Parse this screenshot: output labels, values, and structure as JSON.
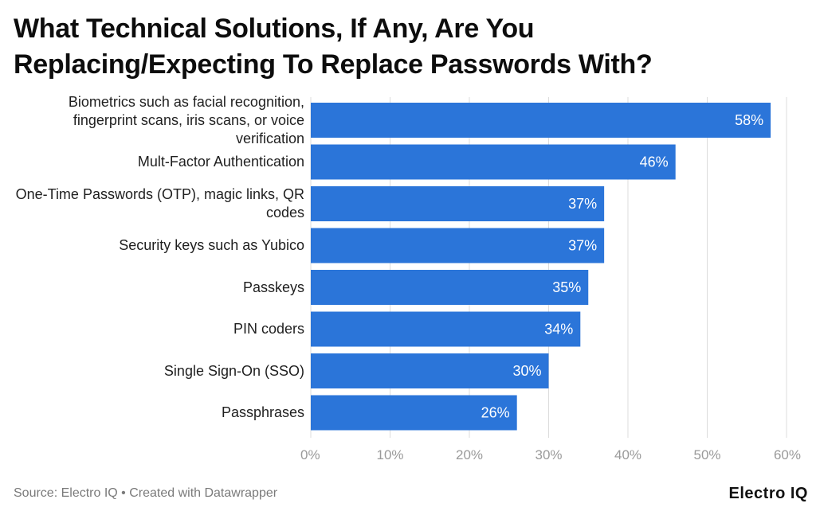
{
  "header": {
    "title": "What Technical Solutions, If Any, Are You Replacing/Expecting To Replace Passwords With?"
  },
  "footer": {
    "source": "Source: Electro IQ • Created with Datawrapper",
    "brand": "Electro IQ"
  },
  "colors": {
    "bar": "#2b75d9",
    "grid": "#dcdcdc",
    "tick": "#9a9a9a",
    "value_label": "#ffffff"
  },
  "chart_data": {
    "type": "bar",
    "orientation": "horizontal",
    "title": "What Technical Solutions, If Any, Are You Replacing/Expecting To Replace Passwords With?",
    "categories": [
      "Biometrics such as facial recognition, fingerprint scans, iris scans, or voice verification",
      "Mult-Factor Authentication",
      "One-Time Passwords (OTP), magic links, QR codes",
      "Security keys such as Yubico",
      "Passkeys",
      "PIN coders",
      "Single Sign-On (SSO)",
      "Passphrases"
    ],
    "values": [
      58,
      46,
      37,
      37,
      35,
      34,
      30,
      26
    ],
    "value_labels": [
      "58%",
      "46%",
      "37%",
      "37%",
      "35%",
      "34%",
      "30%",
      "26%"
    ],
    "xlim": [
      0,
      60
    ],
    "ticks": [
      0,
      10,
      20,
      30,
      40,
      50,
      60
    ],
    "tick_labels": [
      "0%",
      "10%",
      "20%",
      "30%",
      "40%",
      "50%",
      "60%"
    ],
    "grid": true,
    "legend": "none"
  }
}
